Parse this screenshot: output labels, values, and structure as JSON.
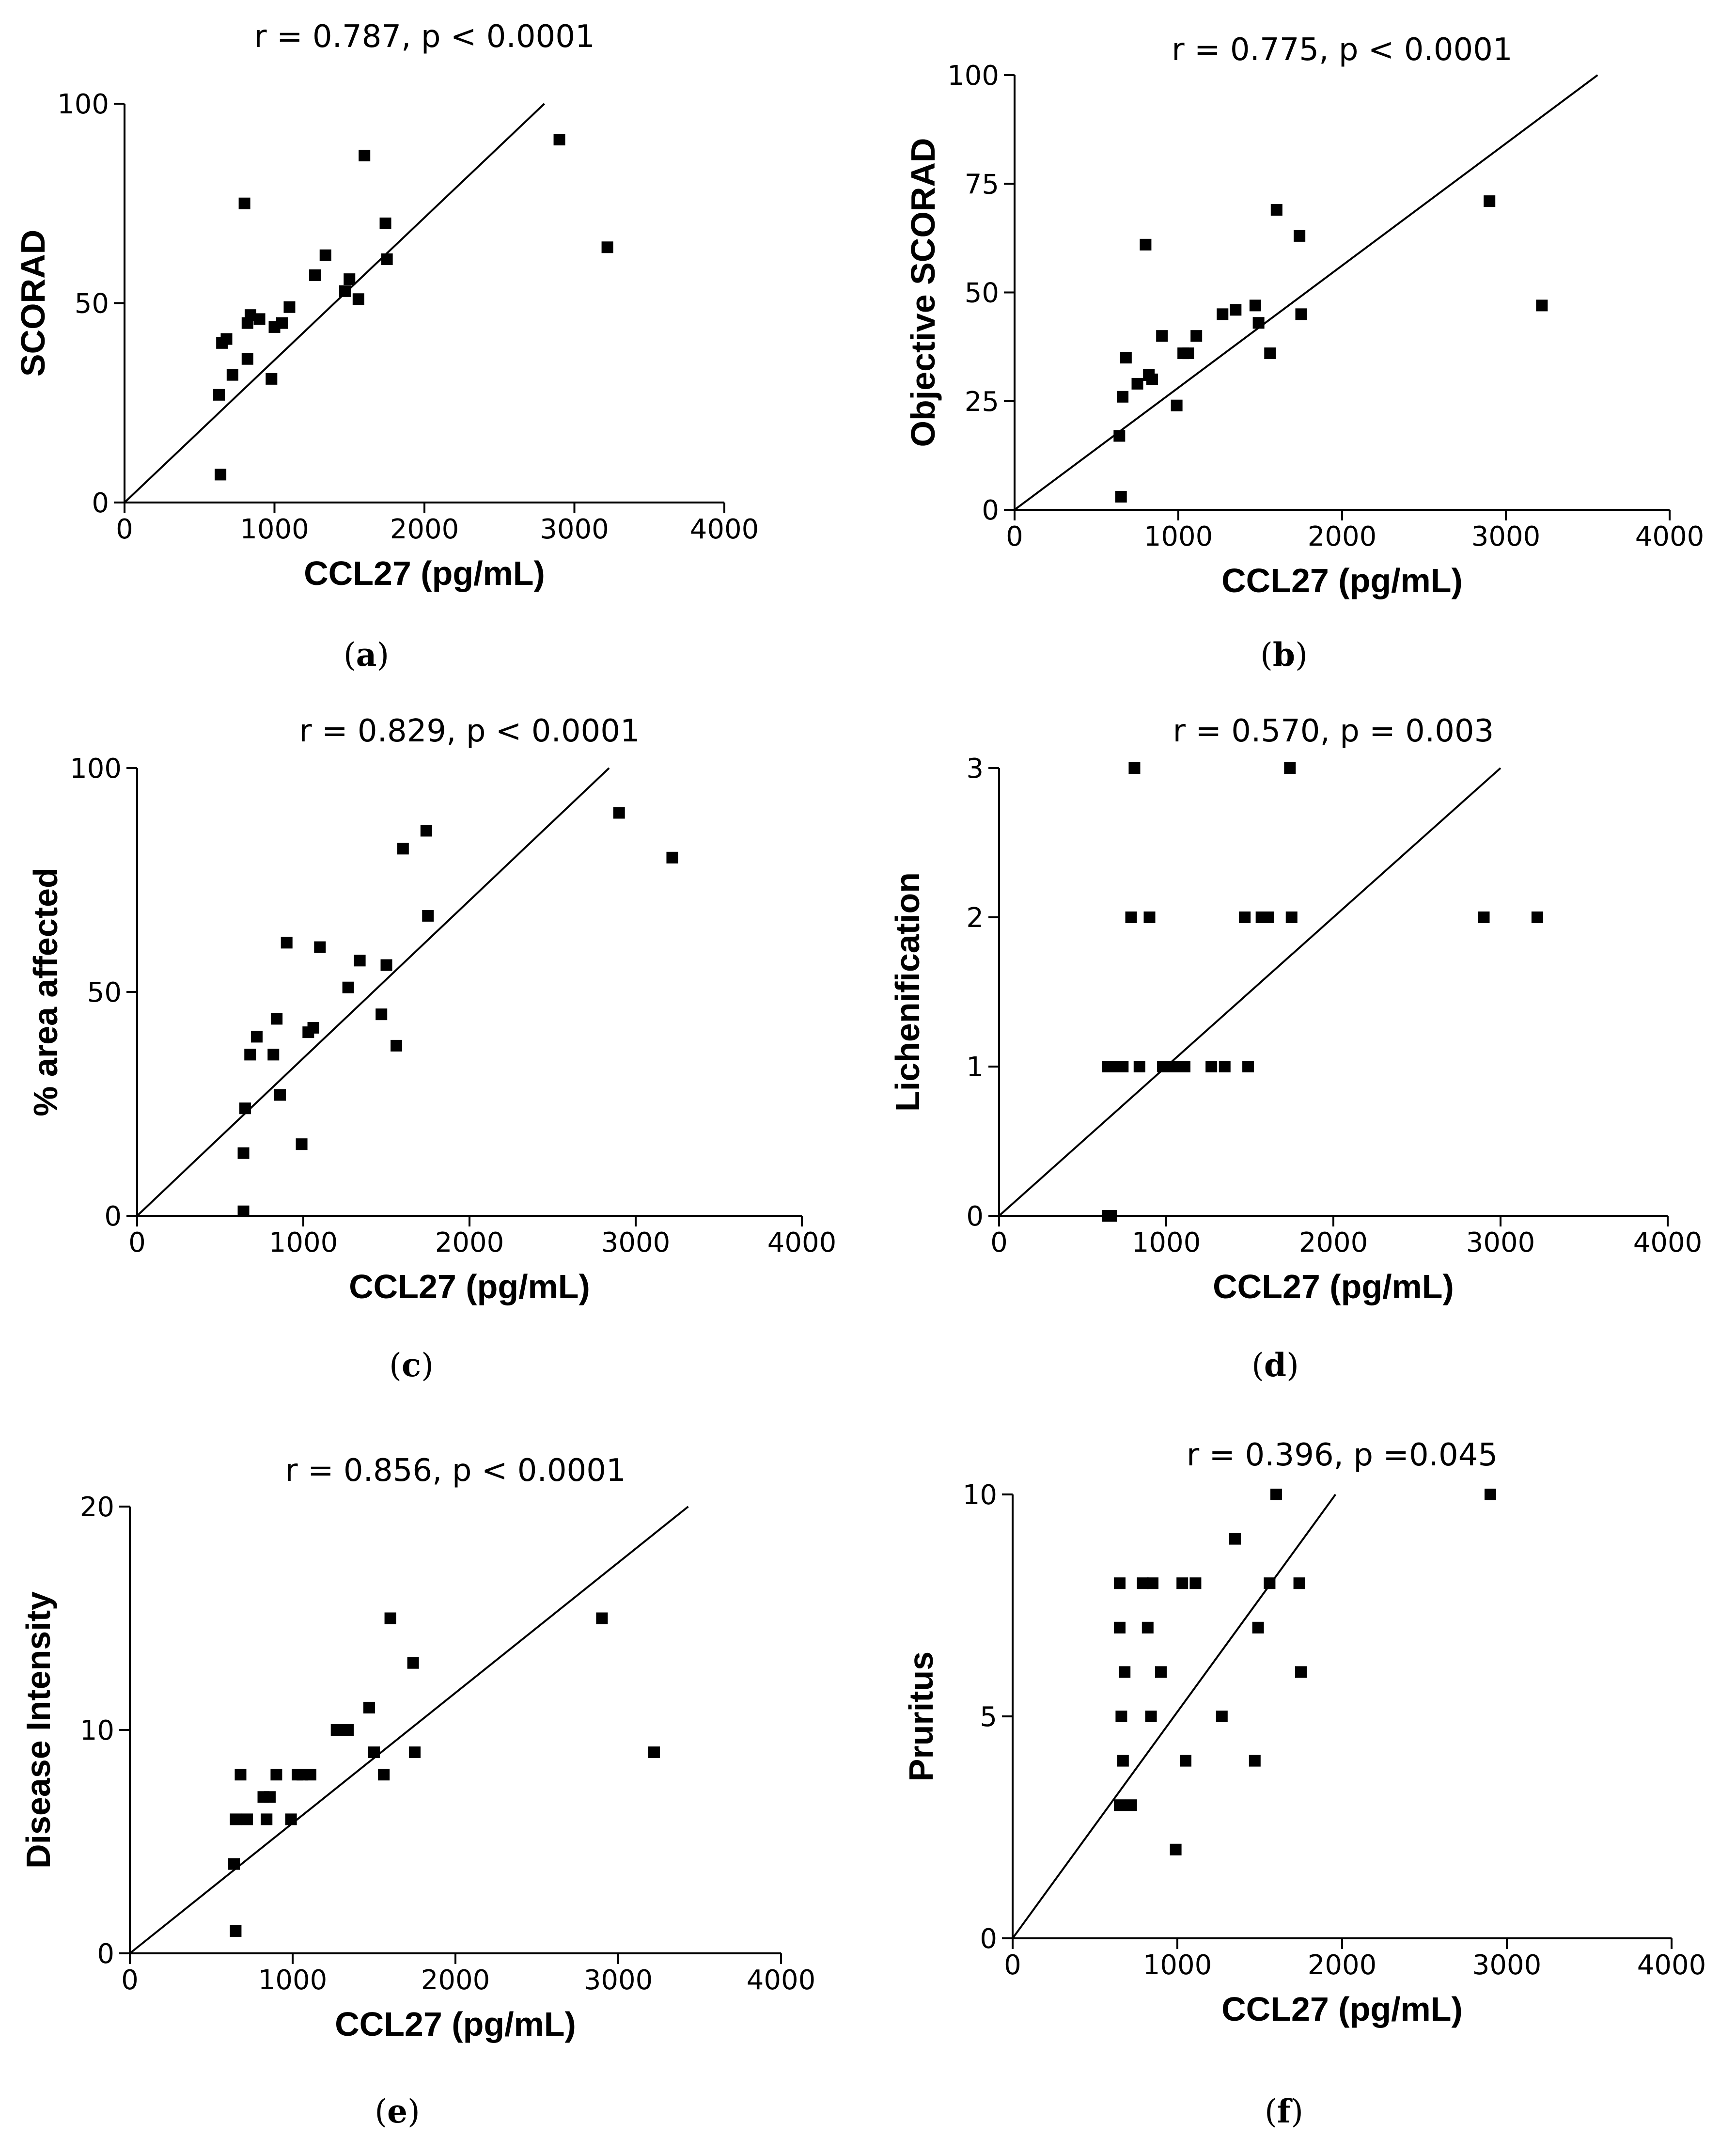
{
  "figure": {
    "background": "#ffffff",
    "ink": "#000000"
  },
  "chart_data": [
    {
      "id": "a",
      "type": "scatter",
      "caption": {
        "open": "(",
        "letter": "a",
        "close": ")"
      },
      "title": "r = 0.787, p < 0.0001",
      "xlabel": "CCL27 (pg/mL)",
      "ylabel": "SCORAD",
      "xlim": [
        0,
        4000
      ],
      "ylim": [
        0,
        100
      ],
      "xticks": [
        0,
        1000,
        2000,
        3000,
        4000
      ],
      "yticks": [
        0,
        50,
        100
      ],
      "fit_line": {
        "x": [
          0,
          2800
        ],
        "y": [
          0,
          100
        ]
      },
      "points": [
        [
          640,
          7
        ],
        [
          630,
          27
        ],
        [
          650,
          40
        ],
        [
          680,
          41
        ],
        [
          720,
          32
        ],
        [
          820,
          36
        ],
        [
          820,
          45
        ],
        [
          840,
          47
        ],
        [
          900,
          46
        ],
        [
          980,
          31
        ],
        [
          1000,
          44
        ],
        [
          1050,
          45
        ],
        [
          1100,
          49
        ],
        [
          800,
          75
        ],
        [
          1270,
          57
        ],
        [
          1340,
          62
        ],
        [
          1470,
          53
        ],
        [
          1500,
          56
        ],
        [
          1560,
          51
        ],
        [
          1600,
          87
        ],
        [
          1740,
          70
        ],
        [
          1750,
          61
        ],
        [
          2900,
          91
        ],
        [
          3220,
          64
        ]
      ]
    },
    {
      "id": "b",
      "type": "scatter",
      "caption": {
        "open": "(",
        "letter": "b",
        "close": ")"
      },
      "title": "r = 0.775, p < 0.0001",
      "xlabel": "CCL27 (pg/mL)",
      "ylabel": "Objective SCORAD",
      "xlim": [
        0,
        4000
      ],
      "ylim": [
        0,
        100
      ],
      "xticks": [
        0,
        1000,
        2000,
        3000,
        4000
      ],
      "yticks": [
        0,
        25,
        50,
        75,
        100
      ],
      "fit_line": {
        "x": [
          0,
          3560
        ],
        "y": [
          0,
          100
        ]
      },
      "points": [
        [
          650,
          3
        ],
        [
          640,
          17
        ],
        [
          660,
          26
        ],
        [
          680,
          35
        ],
        [
          750,
          29
        ],
        [
          800,
          61
        ],
        [
          820,
          31
        ],
        [
          840,
          30
        ],
        [
          900,
          40
        ],
        [
          990,
          24
        ],
        [
          1030,
          36
        ],
        [
          1060,
          36
        ],
        [
          1110,
          40
        ],
        [
          1270,
          45
        ],
        [
          1350,
          46
        ],
        [
          1470,
          47
        ],
        [
          1490,
          43
        ],
        [
          1560,
          36
        ],
        [
          1600,
          69
        ],
        [
          1740,
          63
        ],
        [
          1750,
          45
        ],
        [
          2900,
          71
        ],
        [
          3220,
          47
        ]
      ]
    },
    {
      "id": "c",
      "type": "scatter",
      "caption": {
        "open": "(",
        "letter": "c",
        "close": ")"
      },
      "title": "r = 0.829, p < 0.0001",
      "xlabel": "CCL27 (pg/mL)",
      "ylabel": "% area affected",
      "xlim": [
        0,
        4000
      ],
      "ylim": [
        0,
        100
      ],
      "xticks": [
        0,
        1000,
        2000,
        3000,
        4000
      ],
      "yticks": [
        0,
        50,
        100
      ],
      "fit_line": {
        "x": [
          0,
          2840
        ],
        "y": [
          0,
          100
        ]
      },
      "points": [
        [
          640,
          1
        ],
        [
          640,
          14
        ],
        [
          650,
          24
        ],
        [
          680,
          36
        ],
        [
          720,
          40
        ],
        [
          820,
          36
        ],
        [
          840,
          44
        ],
        [
          860,
          27
        ],
        [
          900,
          61
        ],
        [
          990,
          16
        ],
        [
          1030,
          41
        ],
        [
          1060,
          42
        ],
        [
          1100,
          60
        ],
        [
          1270,
          51
        ],
        [
          1340,
          57
        ],
        [
          1470,
          45
        ],
        [
          1500,
          56
        ],
        [
          1560,
          38
        ],
        [
          1600,
          82
        ],
        [
          1740,
          86
        ],
        [
          1750,
          67
        ],
        [
          2900,
          90
        ],
        [
          3220,
          80
        ]
      ]
    },
    {
      "id": "d",
      "type": "scatter",
      "caption": {
        "open": "(",
        "letter": "d",
        "close": ")"
      },
      "title": "r = 0.570, p = 0.003",
      "xlabel": "CCL27 (pg/mL)",
      "ylabel": "Lichenification",
      "xlim": [
        0,
        4000
      ],
      "ylim": [
        0,
        3
      ],
      "xticks": [
        0,
        1000,
        2000,
        3000,
        4000
      ],
      "yticks": [
        0,
        1,
        2,
        3
      ],
      "fit_line": {
        "x": [
          0,
          3000
        ],
        "y": [
          0,
          3
        ]
      },
      "points": [
        [
          650,
          0
        ],
        [
          670,
          0
        ],
        [
          650,
          1
        ],
        [
          680,
          1
        ],
        [
          720,
          1
        ],
        [
          740,
          1
        ],
        [
          840,
          1
        ],
        [
          980,
          1
        ],
        [
          1020,
          1
        ],
        [
          1050,
          1
        ],
        [
          1110,
          1
        ],
        [
          1270,
          1
        ],
        [
          1350,
          1
        ],
        [
          1490,
          1
        ],
        [
          790,
          2
        ],
        [
          900,
          2
        ],
        [
          1470,
          2
        ],
        [
          1570,
          2
        ],
        [
          1610,
          2
        ],
        [
          1750,
          2
        ],
        [
          810,
          3
        ],
        [
          1740,
          3
        ],
        [
          2900,
          2
        ],
        [
          3220,
          2
        ]
      ]
    },
    {
      "id": "e",
      "type": "scatter",
      "caption": {
        "open": "(",
        "letter": "e",
        "close": ")"
      },
      "title": "r = 0.856, p < 0.0001",
      "xlabel": "CCL27 (pg/mL)",
      "ylabel": "Disease Intensity",
      "xlim": [
        0,
        4000
      ],
      "ylim": [
        0,
        20
      ],
      "xticks": [
        0,
        1000,
        2000,
        3000,
        4000
      ],
      "yticks": [
        0,
        10,
        20
      ],
      "fit_line": {
        "x": [
          0,
          3430
        ],
        "y": [
          0,
          20
        ]
      },
      "points": [
        [
          650,
          1
        ],
        [
          640,
          4
        ],
        [
          650,
          6
        ],
        [
          680,
          8
        ],
        [
          720,
          6
        ],
        [
          820,
          7
        ],
        [
          840,
          6
        ],
        [
          860,
          7
        ],
        [
          900,
          8
        ],
        [
          990,
          6
        ],
        [
          1030,
          8
        ],
        [
          1060,
          8
        ],
        [
          1110,
          8
        ],
        [
          1270,
          10
        ],
        [
          1340,
          10
        ],
        [
          1470,
          11
        ],
        [
          1500,
          9
        ],
        [
          1560,
          8
        ],
        [
          1600,
          15
        ],
        [
          1740,
          13
        ],
        [
          1750,
          9
        ],
        [
          2900,
          15
        ],
        [
          3220,
          9
        ]
      ]
    },
    {
      "id": "f",
      "type": "scatter",
      "caption": {
        "open": "(",
        "letter": "f",
        "close": ")"
      },
      "title": "r = 0.396, p =0.045",
      "xlabel": "CCL27 (pg/mL)",
      "ylabel": "Pruritus",
      "xlim": [
        0,
        4000
      ],
      "ylim": [
        0,
        10
      ],
      "xticks": [
        0,
        1000,
        2000,
        3000,
        4000
      ],
      "yticks": [
        0,
        5,
        10
      ],
      "fit_line": {
        "x": [
          0,
          1960
        ],
        "y": [
          0,
          10
        ]
      },
      "points": [
        [
          650,
          3
        ],
        [
          670,
          4
        ],
        [
          660,
          5
        ],
        [
          650,
          7
        ],
        [
          650,
          8
        ],
        [
          680,
          6
        ],
        [
          720,
          3
        ],
        [
          790,
          8
        ],
        [
          820,
          7
        ],
        [
          850,
          8
        ],
        [
          840,
          5
        ],
        [
          900,
          6
        ],
        [
          990,
          2
        ],
        [
          1030,
          8
        ],
        [
          1050,
          4
        ],
        [
          1110,
          8
        ],
        [
          1270,
          5
        ],
        [
          1350,
          9
        ],
        [
          1470,
          4
        ],
        [
          1490,
          7
        ],
        [
          1560,
          8
        ],
        [
          1600,
          10
        ],
        [
          1740,
          8
        ],
        [
          1750,
          6
        ],
        [
          2900,
          10
        ]
      ]
    }
  ]
}
